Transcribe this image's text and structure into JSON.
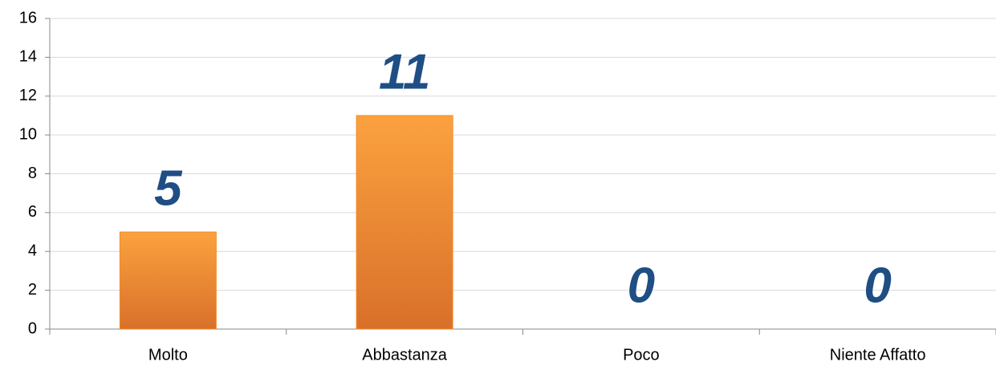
{
  "chart_data": {
    "type": "bar",
    "categories": [
      "Molto",
      "Abbastanza",
      "Poco",
      "Niente Affatto"
    ],
    "values": [
      5,
      11,
      0,
      0
    ],
    "color": "#f28c28",
    "ylim": [
      0,
      16
    ],
    "yticks": [
      0,
      2,
      4,
      6,
      8,
      10,
      12,
      14,
      16
    ],
    "grid": true
  }
}
